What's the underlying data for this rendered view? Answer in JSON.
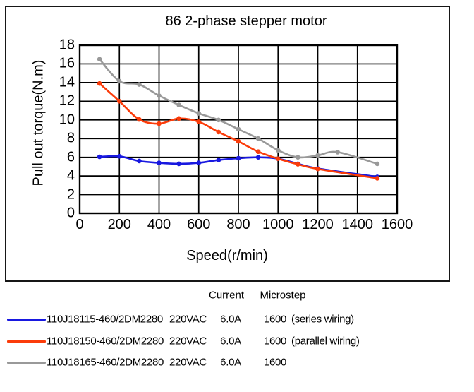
{
  "chart_data": {
    "type": "line",
    "title": "86 2-phase stepper motor",
    "xlabel": "Speed(r/min)",
    "ylabel": "Pull out torque(N.m)",
    "xlim": [
      0,
      1600
    ],
    "ylim": [
      0,
      18
    ],
    "xticks": [
      0,
      200,
      400,
      600,
      800,
      1000,
      1200,
      1400,
      1600
    ],
    "yticks": [
      0,
      2,
      4,
      6,
      8,
      10,
      12,
      14,
      16,
      18
    ],
    "grid": true,
    "line_style": "smooth",
    "marker": "dot",
    "legend_position": "bottom",
    "series": [
      {
        "name": "110J18115-460/2DM2280",
        "color": "#1818e0",
        "points": [
          [
            100,
            6.05
          ],
          [
            200,
            6.1
          ],
          [
            300,
            5.6
          ],
          [
            400,
            5.4
          ],
          [
            500,
            5.3
          ],
          [
            600,
            5.4
          ],
          [
            700,
            5.7
          ],
          [
            800,
            5.9
          ],
          [
            900,
            6.0
          ],
          [
            1000,
            5.85
          ],
          [
            1100,
            5.3
          ],
          [
            1200,
            4.8
          ],
          [
            1500,
            3.9
          ]
        ]
      },
      {
        "name": "110J18150-460/2DM2280",
        "color": "#fb3c0a",
        "points": [
          [
            100,
            13.9
          ],
          [
            200,
            12.0
          ],
          [
            300,
            10.05
          ],
          [
            400,
            9.6
          ],
          [
            500,
            10.15
          ],
          [
            600,
            9.8
          ],
          [
            700,
            8.7
          ],
          [
            800,
            7.7
          ],
          [
            900,
            6.6
          ],
          [
            1000,
            5.85
          ],
          [
            1100,
            5.25
          ],
          [
            1200,
            4.75
          ],
          [
            1500,
            3.75
          ]
        ]
      },
      {
        "name": "110J18165-460/2DM2280",
        "color": "#999999",
        "points": [
          [
            100,
            16.5
          ],
          [
            200,
            14.15
          ],
          [
            300,
            13.8
          ],
          [
            400,
            12.6
          ],
          [
            500,
            11.6
          ],
          [
            600,
            10.7
          ],
          [
            700,
            10.0
          ],
          [
            800,
            9.0
          ],
          [
            900,
            8.0
          ],
          [
            1000,
            6.75
          ],
          [
            1100,
            6.0
          ],
          [
            1200,
            6.2
          ],
          [
            1300,
            6.55
          ],
          [
            1500,
            5.3
          ]
        ]
      }
    ]
  },
  "legend": {
    "header": {
      "current": "Current",
      "microstep": "Microstep"
    },
    "rows": [
      {
        "model": "110J18115-460/2DM2280",
        "voltage": "220VAC",
        "current": "6.0A",
        "microstep": "1600",
        "note": "(series wiring)",
        "color": "#1818e0"
      },
      {
        "model": "110J18150-460/2DM2280",
        "voltage": "220VAC",
        "current": "6.0A",
        "microstep": "1600",
        "note": "(parallel wiring)",
        "color": "#fb3c0a"
      },
      {
        "model": "110J18165-460/2DM2280",
        "voltage": "220VAC",
        "current": "6.0A",
        "microstep": "1600",
        "note": "",
        "color": "#999999"
      }
    ]
  }
}
